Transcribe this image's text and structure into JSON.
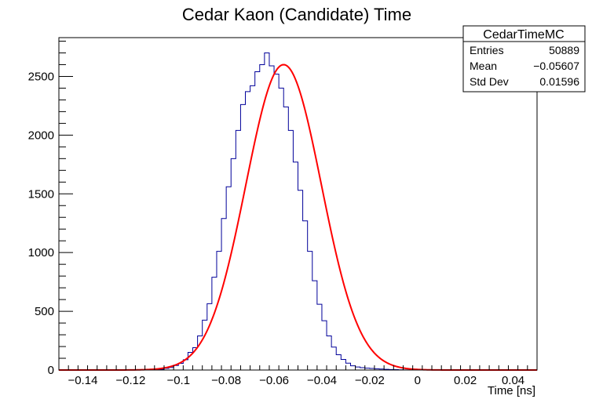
{
  "chart_data": {
    "type": "bar",
    "title": "Cedar Kaon (Candidate) Time",
    "xlabel": "Time [ns]",
    "ylabel": "",
    "xlim": [
      -0.15,
      0.05
    ],
    "ylim": [
      0,
      2830
    ],
    "x_ticks": [
      -0.14,
      -0.12,
      -0.1,
      -0.08,
      -0.06,
      -0.04,
      -0.02,
      0,
      0.02,
      0.04
    ],
    "x_tick_labels": [
      "−0.14",
      "−0.12",
      "−0.1",
      "−0.08",
      "−0.06",
      "−0.04",
      "−0.02",
      "0",
      "0.02",
      "0.04"
    ],
    "y_ticks": [
      0,
      500,
      1000,
      1500,
      2000,
      2500
    ],
    "y_tick_labels": [
      "0",
      "500",
      "1000",
      "1500",
      "2000",
      "2500"
    ],
    "grid": false,
    "bin_width": 0.002,
    "bin_low_edges": [
      -0.15,
      -0.148,
      -0.146,
      -0.144,
      -0.142,
      -0.14,
      -0.138,
      -0.136,
      -0.134,
      -0.132,
      -0.13,
      -0.128,
      -0.126,
      -0.124,
      -0.122,
      -0.12,
      -0.118,
      -0.116,
      -0.114,
      -0.112,
      -0.11,
      -0.108,
      -0.106,
      -0.104,
      -0.102,
      -0.1,
      -0.098,
      -0.096,
      -0.094,
      -0.092,
      -0.09,
      -0.088,
      -0.086,
      -0.084,
      -0.082,
      -0.08,
      -0.078,
      -0.076,
      -0.074,
      -0.072,
      -0.07,
      -0.068,
      -0.066,
      -0.064,
      -0.062,
      -0.06,
      -0.058,
      -0.056,
      -0.054,
      -0.052,
      -0.05,
      -0.048,
      -0.046,
      -0.044,
      -0.042,
      -0.04,
      -0.038,
      -0.036,
      -0.034,
      -0.032,
      -0.03,
      -0.028,
      -0.026,
      -0.024,
      -0.022,
      -0.02,
      -0.018,
      -0.016,
      -0.014,
      -0.012,
      -0.01,
      -0.008,
      -0.006,
      -0.004,
      -0.002,
      0,
      0.002,
      0.004,
      0.006,
      0.008,
      0.01,
      0.012,
      0.014,
      0.016,
      0.018,
      0.02,
      0.022,
      0.024,
      0.026,
      0.028,
      0.03,
      0.032,
      0.034,
      0.036,
      0.038,
      0.04,
      0.042,
      0.044,
      0.046,
      0.048
    ],
    "series": [
      {
        "name": "CedarTimeMC",
        "values": [
          0,
          0,
          0,
          0,
          0,
          0,
          0,
          0,
          0,
          0,
          0,
          0,
          0,
          0,
          0,
          0,
          0,
          0,
          1,
          2,
          4,
          7,
          14,
          22,
          38,
          57,
          88,
          150,
          190,
          290,
          425,
          565,
          790,
          1010,
          1290,
          1560,
          1800,
          2040,
          2260,
          2370,
          2420,
          2540,
          2600,
          2700,
          2590,
          2520,
          2400,
          2240,
          2040,
          1770,
          1530,
          1270,
          1010,
          760,
          560,
          420,
          290,
          195,
          130,
          90,
          58,
          36,
          26,
          20,
          16,
          13,
          10,
          8,
          6,
          4,
          3,
          2,
          1,
          1,
          0,
          0,
          0,
          0,
          0,
          0,
          0,
          0,
          0,
          0,
          0,
          0,
          0,
          0,
          0,
          0,
          0,
          0,
          0,
          0,
          0,
          0,
          0,
          0,
          0,
          0
        ],
        "color": "#000099"
      },
      {
        "name": "fit",
        "type": "gaussian",
        "mean": -0.056,
        "sigma": 0.0158,
        "amplitude": 2600,
        "color": "#ff0000"
      }
    ],
    "stats_box": {
      "name": "CedarTimeMC",
      "rows": [
        {
          "label": "Entries",
          "value": "50889"
        },
        {
          "label": "Mean",
          "value": "−0.05607"
        },
        {
          "label": "Std Dev",
          "value": "0.01596"
        }
      ],
      "placement": "top-right"
    }
  }
}
